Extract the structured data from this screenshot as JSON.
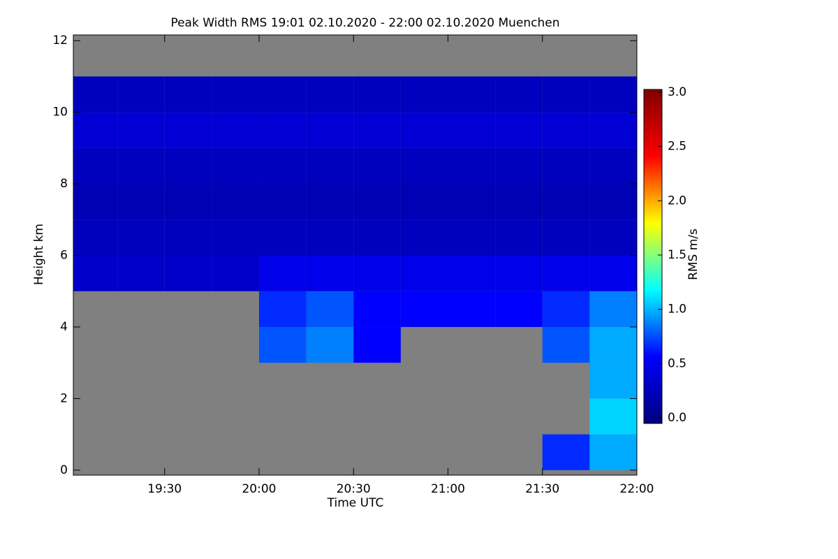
{
  "chart_data": {
    "type": "heatmap",
    "title": "Peak Width RMS   19:01 02.10.2020 - 22:00 02.10.2020 Muenchen",
    "xlabel": "Time UTC",
    "ylabel": "Height km",
    "colorbar_label": "RMS m/s",
    "xlim": [
      19.0167,
      22.0
    ],
    "xticks": [
      {
        "value": 19.5,
        "label": "19:30"
      },
      {
        "value": 20.0,
        "label": "20:00"
      },
      {
        "value": 20.5,
        "label": "20:30"
      },
      {
        "value": 21.0,
        "label": "21:00"
      },
      {
        "value": 21.5,
        "label": "21:30"
      },
      {
        "value": 22.0,
        "label": "22:00"
      }
    ],
    "ylim": [
      -0.14,
      12.16
    ],
    "yticks": [
      0,
      2,
      4,
      6,
      8,
      10,
      12
    ],
    "x_edges": [
      19.0167,
      19.25,
      19.5,
      19.75,
      20.0,
      20.25,
      20.5,
      20.75,
      21.0,
      21.25,
      21.5,
      21.75,
      22.0
    ],
    "y_edges": [
      0,
      1,
      2,
      3,
      4,
      5,
      6,
      7,
      8,
      9,
      10,
      11,
      12
    ],
    "z": [
      [
        null,
        null,
        null,
        null,
        null,
        null,
        null,
        null,
        null,
        null,
        0.7,
        1.0
      ],
      [
        null,
        null,
        null,
        null,
        null,
        null,
        null,
        null,
        null,
        null,
        null,
        1.1
      ],
      [
        null,
        null,
        null,
        null,
        null,
        null,
        null,
        null,
        null,
        null,
        null,
        1.0
      ],
      [
        null,
        null,
        null,
        null,
        0.8,
        0.9,
        0.6,
        null,
        null,
        null,
        0.8,
        1.0
      ],
      [
        null,
        null,
        null,
        null,
        0.7,
        0.8,
        0.6,
        0.6,
        0.6,
        0.6,
        0.7,
        0.9
      ],
      [
        0.35,
        0.35,
        0.35,
        0.35,
        0.5,
        0.5,
        0.5,
        0.5,
        0.5,
        0.5,
        0.5,
        0.5
      ],
      [
        0.3,
        0.3,
        0.3,
        0.3,
        0.3,
        0.3,
        0.3,
        0.3,
        0.3,
        0.3,
        0.3,
        0.3
      ],
      [
        0.25,
        0.25,
        0.25,
        0.25,
        0.25,
        0.25,
        0.25,
        0.25,
        0.25,
        0.25,
        0.25,
        0.25
      ],
      [
        0.3,
        0.3,
        0.3,
        0.3,
        0.3,
        0.3,
        0.3,
        0.3,
        0.3,
        0.3,
        0.3,
        0.3
      ],
      [
        0.4,
        0.4,
        0.4,
        0.4,
        0.4,
        0.4,
        0.4,
        0.4,
        0.4,
        0.4,
        0.4,
        0.4
      ],
      [
        0.3,
        0.3,
        0.3,
        0.3,
        0.3,
        0.3,
        0.3,
        0.3,
        0.3,
        0.3,
        0.3,
        0.3
      ],
      [
        null,
        null,
        null,
        null,
        null,
        null,
        null,
        null,
        null,
        null,
        null,
        null
      ]
    ],
    "clim": [
      0,
      3
    ],
    "cticks": [
      {
        "value": 0,
        "label": "0.0"
      },
      {
        "value": 0.5,
        "label": "0.5"
      },
      {
        "value": 1,
        "label": "1.0"
      },
      {
        "value": 1.5,
        "label": "1.5"
      },
      {
        "value": 2,
        "label": "2.0"
      },
      {
        "value": 2.5,
        "label": "2.5"
      },
      {
        "value": 3,
        "label": "3.0"
      }
    ],
    "colormap": [
      "#00007f",
      "#0000ff",
      "#00ffff",
      "#ffff00",
      "#ff0000",
      "#7f0000"
    ],
    "background": "#808080"
  }
}
